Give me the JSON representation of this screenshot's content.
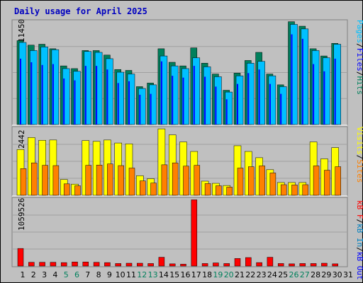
{
  "title": "Daily usage for April 2025",
  "colors": {
    "background": "#c0c0c0",
    "title": "#0000c0",
    "hits": "#00805c",
    "files": "#0000ff",
    "pages": "#00c0ff",
    "visits": "#ffff00",
    "sites": "#ff8000",
    "kb_in": "#0080c0",
    "kb_out": "#0000ff",
    "kb_f": "#ff0000",
    "weekend_day": "#00805c",
    "weekday_day": "#000000"
  },
  "chart_data": [
    {
      "type": "bar",
      "panel": "hits-files-pages",
      "ymax_label": "11450",
      "ylim": [
        0,
        11450
      ],
      "legend": {
        "pages": "Pages",
        "sep1": "/",
        "files": "Files",
        "sep2": "/",
        "hits": "Hits"
      },
      "series": [
        {
          "name": "Hits",
          "values": [
            9300,
            8800,
            8900,
            8400,
            6500,
            6200,
            8200,
            8200,
            7700,
            6100,
            6000,
            4200,
            4600,
            8400,
            6900,
            6500,
            8500,
            6800,
            5600,
            3800,
            5700,
            7100,
            8000,
            5600,
            4400,
            11400,
            10900,
            8400,
            7600,
            9000
          ]
        },
        {
          "name": "Files",
          "values": [
            7300,
            6900,
            6600,
            6700,
            5100,
            4900,
            6500,
            6500,
            6100,
            4600,
            4800,
            3300,
            3400,
            7000,
            5400,
            5200,
            6500,
            5300,
            4200,
            2800,
            4500,
            5700,
            6100,
            4500,
            3400,
            10000,
            9500,
            6700,
            5900,
            7300
          ]
        },
        {
          "name": "Pages",
          "values": [
            9100,
            8200,
            8600,
            8300,
            6200,
            5900,
            8100,
            8000,
            7300,
            5800,
            5600,
            4000,
            4400,
            7600,
            6500,
            6200,
            7400,
            6400,
            5300,
            3600,
            5400,
            6800,
            7000,
            5400,
            4200,
            11100,
            10600,
            8200,
            7400,
            8900
          ]
        }
      ]
    },
    {
      "type": "bar",
      "panel": "visits-sites",
      "ymax_label": "2442",
      "ylim": [
        0,
        2442
      ],
      "legend": {
        "visits": "Visits",
        "sep": "/",
        "sites": "Sites"
      },
      "series": [
        {
          "name": "Visits",
          "values": [
            1680,
            2120,
            2020,
            2030,
            580,
            410,
            2010,
            1980,
            2030,
            1920,
            1890,
            720,
            610,
            2440,
            2220,
            1960,
            1610,
            520,
            440,
            360,
            1820,
            1610,
            1380,
            940,
            470,
            470,
            470,
            1960,
            1340,
            1750
          ]
        },
        {
          "name": "Sites",
          "values": [
            980,
            1190,
            1100,
            1090,
            420,
            350,
            1100,
            1110,
            1150,
            1090,
            1000,
            530,
            450,
            1120,
            1190,
            1070,
            1100,
            430,
            350,
            300,
            1000,
            1050,
            1080,
            820,
            390,
            380,
            390,
            1080,
            920,
            1050
          ]
        }
      ]
    },
    {
      "type": "bar",
      "panel": "kbf-kbin-kbout",
      "ymax_label": "1059526",
      "ylim": [
        0,
        1059526
      ],
      "legend": {
        "kb_f": "kB F",
        "sep1": "/",
        "kb_in": "kB In",
        "sep2": "/",
        "kb_out": "kB Out"
      },
      "series": [
        {
          "name": "kB F",
          "values": [
            280000,
            60000,
            60000,
            60000,
            55000,
            65000,
            65000,
            60000,
            55000,
            40000,
            45000,
            45000,
            40000,
            140000,
            35000,
            30000,
            1055000,
            40000,
            50000,
            40000,
            120000,
            135000,
            55000,
            140000,
            40000,
            35000,
            40000,
            40000,
            45000,
            35000
          ]
        }
      ]
    }
  ],
  "days": [
    "1",
    "2",
    "3",
    "4",
    "5",
    "6",
    "7",
    "8",
    "9",
    "10",
    "11",
    "12",
    "13",
    "14",
    "15",
    "16",
    "17",
    "18",
    "19",
    "20",
    "21",
    "22",
    "23",
    "24",
    "25",
    "26",
    "27",
    "28",
    "29",
    "30",
    "31"
  ],
  "weekend_days": [
    5,
    6,
    12,
    13,
    19,
    20,
    26,
    27
  ]
}
